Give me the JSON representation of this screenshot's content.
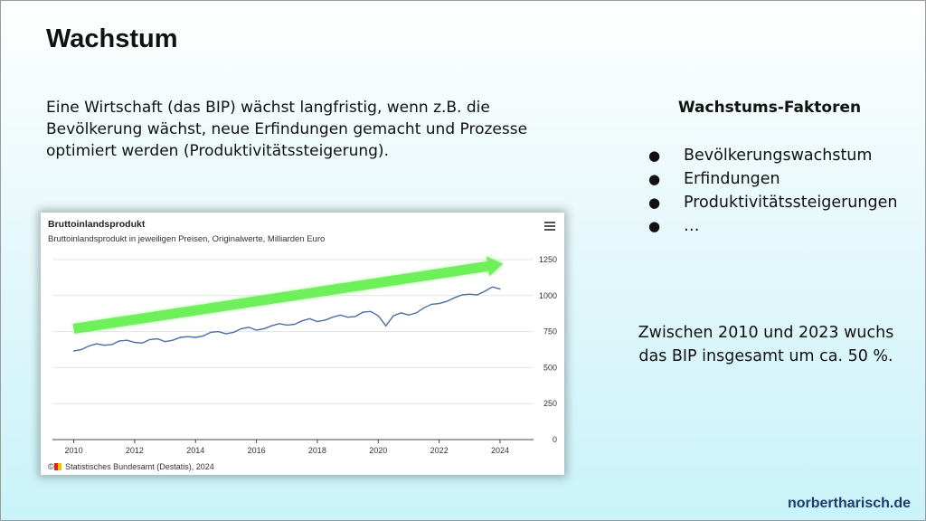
{
  "slide": {
    "title": "Wachstum",
    "intro": "Eine Wirtschaft (das BIP) wächst langfristig, wenn z.B. die Bevölkerung wächst, neue Erfindungen gemacht und Prozesse optimiert werden (Produktivitätssteigerung).",
    "factors_title": "Wachstums-Faktoren",
    "bullet": "●",
    "factors": [
      "Bevölkerungswachstum",
      "Erfindungen",
      "Produktivitätssteigerungen",
      "…"
    ],
    "summary": "Zwischen 2010 und 2023 wuchs das BIP insgesamt um ca. 50 %.",
    "footer": "norbertharisch.de"
  },
  "chart_data": {
    "type": "line",
    "title": "Bruttoinlandsprodukt",
    "subtitle": "Bruttoinlandsprodukt in jeweiligen Preisen, Originalwerte, Milliarden Euro",
    "credit": "Statistisches Bundesamt (Destatis), 2024",
    "xlabel": "",
    "ylabel": "",
    "xlim": [
      2009.3,
      2025.1
    ],
    "ylim": [
      0,
      1250
    ],
    "x_ticks": [
      2010,
      2012,
      2014,
      2016,
      2018,
      2020,
      2022,
      2024
    ],
    "y_ticks": [
      0,
      250,
      500,
      750,
      1000,
      1250
    ],
    "grid": true,
    "legend": "none",
    "series": [
      {
        "color": "#4a6fa5",
        "x": [
          2010.0,
          2010.25,
          2010.5,
          2010.75,
          2011.0,
          2011.25,
          2011.5,
          2011.75,
          2012.0,
          2012.25,
          2012.5,
          2012.75,
          2013.0,
          2013.25,
          2013.5,
          2013.75,
          2014.0,
          2014.25,
          2014.5,
          2014.75,
          2015.0,
          2015.25,
          2015.5,
          2015.75,
          2016.0,
          2016.25,
          2016.5,
          2016.75,
          2017.0,
          2017.25,
          2017.5,
          2017.75,
          2018.0,
          2018.25,
          2018.5,
          2018.75,
          2019.0,
          2019.25,
          2019.5,
          2019.75,
          2020.0,
          2020.25,
          2020.5,
          2020.75,
          2021.0,
          2021.25,
          2021.5,
          2021.75,
          2022.0,
          2022.25,
          2022.5,
          2022.75,
          2023.0,
          2023.25,
          2023.5,
          2023.75,
          2024.0
        ],
        "values": [
          615,
          625,
          650,
          665,
          655,
          660,
          685,
          690,
          675,
          670,
          695,
          700,
          680,
          690,
          710,
          715,
          710,
          720,
          745,
          750,
          735,
          745,
          770,
          780,
          760,
          770,
          790,
          805,
          795,
          800,
          825,
          840,
          820,
          830,
          850,
          865,
          850,
          855,
          885,
          890,
          860,
          790,
          860,
          880,
          865,
          880,
          915,
          940,
          945,
          960,
          985,
          1005,
          1010,
          1005,
          1030,
          1060,
          1045
        ]
      }
    ],
    "annotation": {
      "type": "arrow",
      "color": "#6ef05a",
      "from": [
        2010.0,
        770
      ],
      "to": [
        2024.1,
        1220
      ]
    }
  }
}
